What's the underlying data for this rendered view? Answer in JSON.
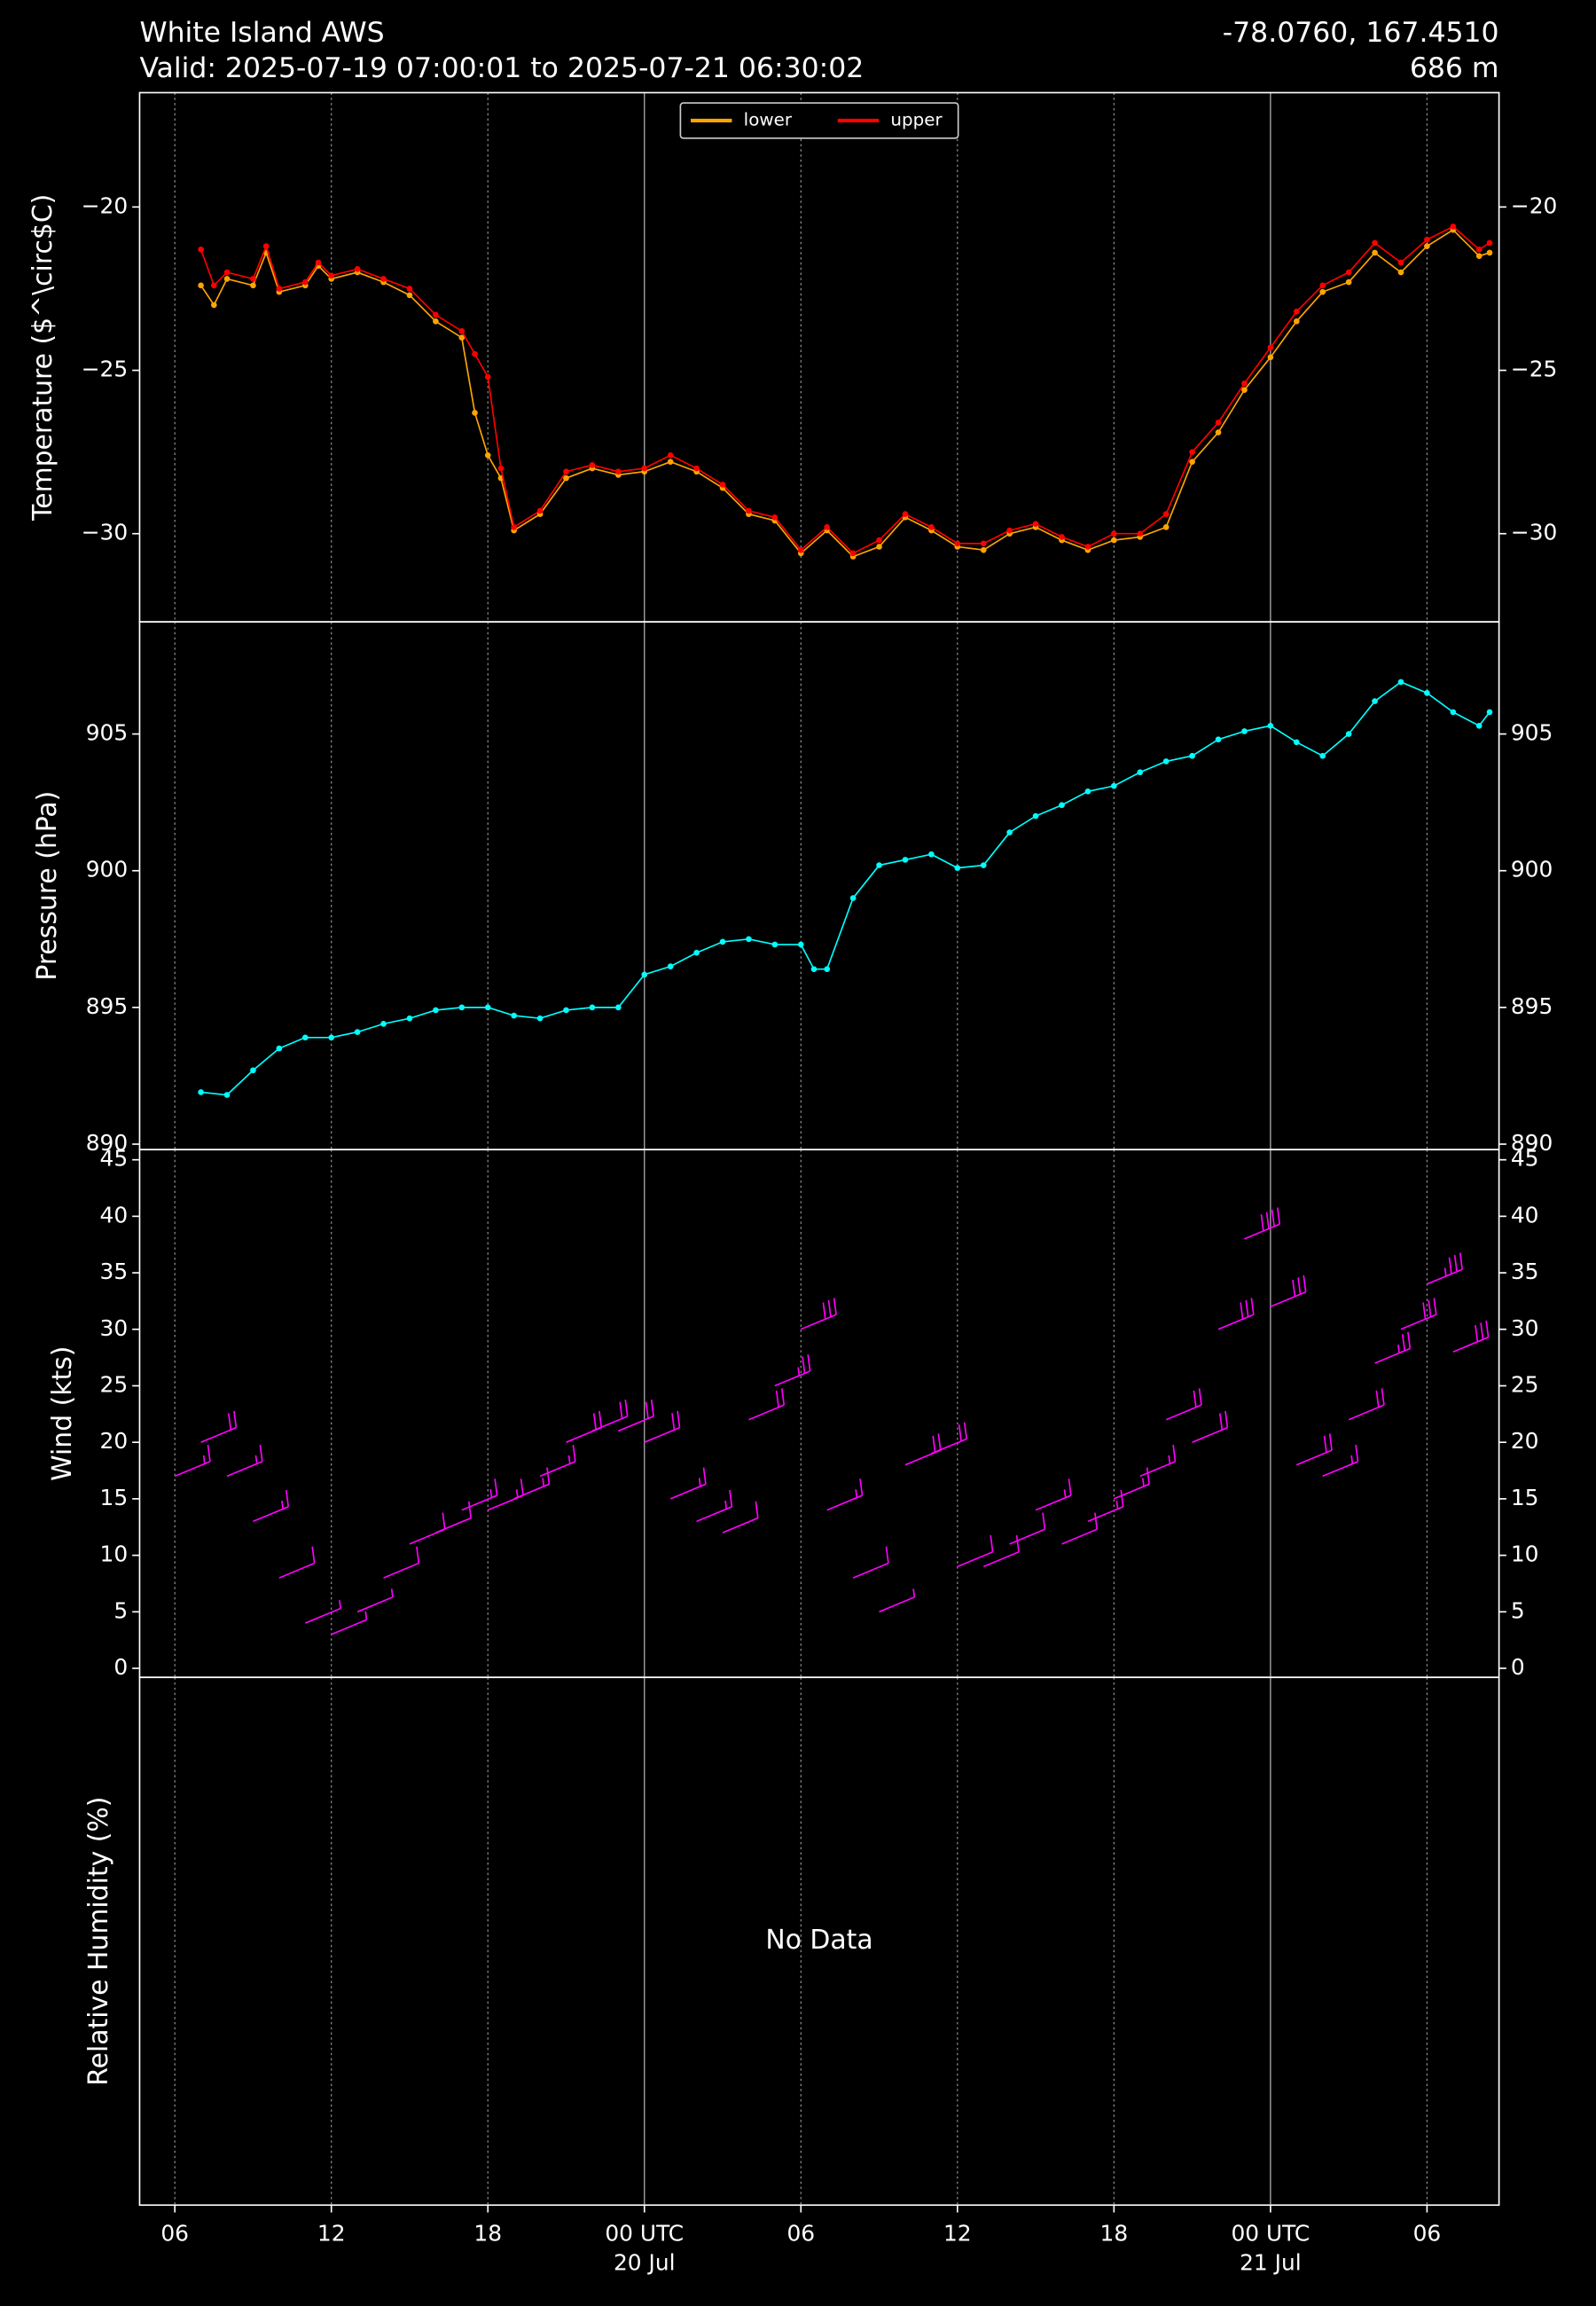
{
  "title": "White Island AWS",
  "subtitle": "Valid: 2025-07-19 07:00:01 to 2025-07-21 06:30:02",
  "location": "-78.0760, 167.4510",
  "elevation": "686 m",
  "x_axis": {
    "xlim": [
      4.65,
      56.76
    ],
    "xticks": [
      {
        "value": 6,
        "label": "06"
      },
      {
        "value": 12,
        "label": "12"
      },
      {
        "value": 18,
        "label": "18"
      },
      {
        "value": 24,
        "label": "00 UTC"
      },
      {
        "value": 30,
        "label": "06"
      },
      {
        "value": 36,
        "label": "12"
      },
      {
        "value": 42,
        "label": "18"
      },
      {
        "value": 48,
        "label": "00 UTC"
      },
      {
        "value": 54,
        "label": "06"
      }
    ],
    "date_labels": [
      {
        "value": 24,
        "label": "20 Jul"
      },
      {
        "value": 48,
        "label": "21 Jul"
      }
    ]
  },
  "chart_data": [
    {
      "type": "line",
      "ylabel": "Temperature ($^\\circ$C)",
      "ylim": [
        -32.7,
        -16.5
      ],
      "yticks": [
        -30,
        -25,
        -20
      ],
      "legend": "upper center",
      "x": [
        7,
        7.5,
        8,
        9,
        9.5,
        10,
        11,
        11.5,
        12,
        13,
        14,
        15,
        16,
        17,
        17.5,
        18,
        18.5,
        19,
        20,
        21,
        22,
        23,
        24,
        25,
        26,
        27,
        28,
        29,
        30,
        31,
        32,
        33,
        34,
        35,
        36,
        37,
        38,
        39,
        40,
        41,
        42,
        43,
        44,
        45,
        46,
        47,
        48,
        49,
        50,
        51,
        52,
        53,
        54,
        55,
        56,
        56.4
      ],
      "series": [
        {
          "name": "lower",
          "color": "#ffa500",
          "values": [
            -22.4,
            -23.0,
            -22.2,
            -22.4,
            -21.4,
            -22.6,
            -22.4,
            -21.8,
            -22.2,
            -22.0,
            -22.3,
            -22.7,
            -23.5,
            -24.0,
            -26.3,
            -27.6,
            -28.3,
            -29.9,
            -29.4,
            -28.3,
            -28.0,
            -28.2,
            -28.1,
            -27.8,
            -28.1,
            -28.6,
            -29.4,
            -29.6,
            -30.6,
            -29.9,
            -30.7,
            -30.4,
            -29.5,
            -29.9,
            -30.4,
            -30.5,
            -30.0,
            -29.8,
            -30.2,
            -30.5,
            -30.2,
            -30.1,
            -29.8,
            -27.8,
            -26.9,
            -25.6,
            -24.6,
            -23.5,
            -22.6,
            -22.3,
            -21.4,
            -22.0,
            -21.2,
            -20.7,
            -21.5,
            -21.4
          ]
        },
        {
          "name": "upper",
          "color": "#ff0000",
          "values": [
            -21.3,
            -22.4,
            -22.0,
            -22.2,
            -21.2,
            -22.5,
            -22.3,
            -21.7,
            -22.1,
            -21.9,
            -22.2,
            -22.5,
            -23.3,
            -23.8,
            -24.5,
            -25.2,
            -28.0,
            -29.8,
            -29.3,
            -28.1,
            -27.9,
            -28.1,
            -28.0,
            -27.6,
            -28.0,
            -28.5,
            -29.3,
            -29.5,
            -30.5,
            -29.8,
            -30.6,
            -30.2,
            -29.4,
            -29.8,
            -30.3,
            -30.3,
            -29.9,
            -29.7,
            -30.1,
            -30.4,
            -30.0,
            -30.0,
            -29.4,
            -27.5,
            -26.6,
            -25.4,
            -24.3,
            -23.2,
            -22.4,
            -22.0,
            -21.1,
            -21.7,
            -21.0,
            -20.6,
            -21.3,
            -21.1
          ]
        }
      ]
    },
    {
      "type": "line",
      "ylabel": "Pressure (hPa)",
      "ylim": [
        889.8,
        909.1
      ],
      "yticks": [
        890,
        895,
        900,
        905
      ],
      "x": [
        7,
        8,
        9,
        10,
        11,
        12,
        13,
        14,
        15,
        16,
        17,
        18,
        19,
        20,
        21,
        22,
        23,
        24,
        25,
        26,
        27,
        28,
        29,
        30,
        30.5,
        31,
        32,
        33,
        34,
        35,
        36,
        37,
        38,
        39,
        40,
        41,
        42,
        43,
        44,
        45,
        46,
        47,
        48,
        49,
        50,
        51,
        52,
        53,
        54,
        55,
        56,
        56.4
      ],
      "series": [
        {
          "name": "pressure",
          "color": "#00ffff",
          "values": [
            891.9,
            891.8,
            892.7,
            893.5,
            893.9,
            893.9,
            894.1,
            894.4,
            894.6,
            894.9,
            895.0,
            895.0,
            894.7,
            894.6,
            894.9,
            895.0,
            895.0,
            896.2,
            896.5,
            897.0,
            897.4,
            897.5,
            897.3,
            897.3,
            896.4,
            896.4,
            899.0,
            900.2,
            900.4,
            900.6,
            900.1,
            900.2,
            901.4,
            902.0,
            902.4,
            902.9,
            903.1,
            903.6,
            904.0,
            904.2,
            904.8,
            905.1,
            905.3,
            904.7,
            904.2,
            905.0,
            906.2,
            906.9,
            906.5,
            905.8,
            905.3,
            905.8
          ]
        }
      ]
    },
    {
      "type": "barbs",
      "ylabel": "Wind (kts)",
      "ylim": [
        -0.8,
        45.9
      ],
      "yticks": [
        0,
        5,
        10,
        15,
        20,
        25,
        30,
        35,
        40,
        45
      ],
      "color": "#ff00ff",
      "x": [
        6,
        7,
        8,
        9,
        10,
        11,
        12,
        13,
        14,
        15,
        16,
        17,
        18,
        19,
        20,
        21,
        22,
        23,
        24,
        25,
        26,
        27,
        28,
        29,
        30,
        31,
        32,
        33,
        34,
        35,
        36,
        37,
        38,
        39,
        40,
        41,
        42,
        43,
        44,
        45,
        46,
        47,
        48,
        49,
        50,
        51,
        52,
        53,
        54,
        55
      ],
      "values": [
        17,
        20,
        17,
        13,
        8,
        4,
        3,
        5,
        8,
        11,
        12,
        14,
        14,
        15,
        17,
        20,
        21,
        21,
        20,
        15,
        13,
        12,
        22,
        25,
        30,
        14,
        8,
        5,
        18,
        19,
        9,
        9,
        11,
        14,
        11,
        13,
        15,
        17,
        22,
        20,
        30,
        38,
        32,
        18,
        17,
        22,
        27,
        30,
        34,
        28
      ]
    },
    {
      "type": "empty",
      "ylabel": "Relative Humidity (%)",
      "message": "No Data"
    }
  ]
}
